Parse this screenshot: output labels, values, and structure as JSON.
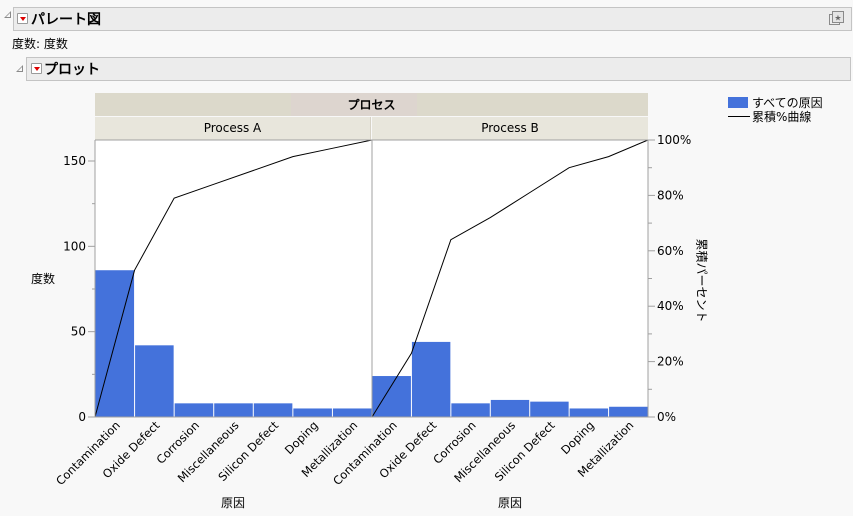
{
  "report": {
    "title": "パレート図",
    "subtitle": "度数: 度数",
    "plot_section_title": "プロット"
  },
  "chart": {
    "group_header": "プロセス",
    "panels": [
      "Process A",
      "Process B"
    ],
    "y_label_left": "度数",
    "y_label_right": "累積パーセント",
    "x_label": "原因",
    "legend": {
      "bar_label": "すべての原因",
      "line_label": "累積%曲線"
    },
    "colors": {
      "bar": "#4472db",
      "line": "#000000",
      "header_group": "#dcd9cb",
      "header_panel": "#e8e6dc"
    }
  },
  "chart_data": {
    "type": "bar",
    "title": "パレート図",
    "categories": [
      "Contamination",
      "Oxide Defect",
      "Corrosion",
      "Miscellaneous",
      "Silicon Defect",
      "Doping",
      "Metallization"
    ],
    "series": [
      {
        "name": "Process A",
        "values": [
          86,
          42,
          8,
          8,
          8,
          5,
          5
        ],
        "cumulative_percent": [
          53,
          79,
          84,
          89,
          94,
          97,
          100
        ]
      },
      {
        "name": "Process B",
        "values": [
          24,
          44,
          8,
          10,
          9,
          5,
          6
        ],
        "cumulative_percent": [
          23,
          64,
          72,
          81,
          90,
          94,
          100
        ]
      }
    ],
    "xlabel": "原因",
    "ylabel": "度数",
    "y2label": "累積パーセント",
    "ylim": [
      0,
      162
    ],
    "yticks": [
      0,
      50,
      100,
      150
    ],
    "y2ticks": [
      "0%",
      "20%",
      "40%",
      "60%",
      "80%",
      "100%"
    ],
    "legend": [
      "すべての原因",
      "累積%曲線"
    ],
    "legend_position": "top-right",
    "grid": false
  }
}
